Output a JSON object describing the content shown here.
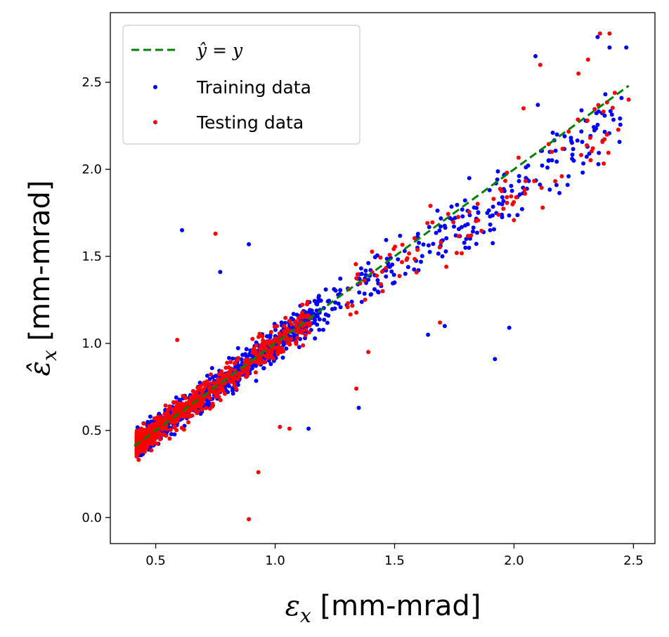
{
  "chart_data": {
    "type": "scatter",
    "title": "",
    "xlabel": "εx [mm-mrad]",
    "ylabel": "ε̂x [mm-mrad]",
    "xlim": [
      0.31,
      2.59
    ],
    "ylim": [
      -0.15,
      2.9
    ],
    "x_ticks": [
      "0.5",
      "1.0",
      "1.5",
      "2.0",
      "2.5"
    ],
    "y_ticks": [
      "0.0",
      "0.5",
      "1.0",
      "1.5",
      "2.0",
      "2.5"
    ],
    "legend_position": "top-left",
    "reference_line": {
      "name": "ŷ = y",
      "style": "dashed",
      "color": "#008000",
      "x": [
        0.41,
        2.48
      ],
      "y": [
        0.41,
        2.48
      ]
    },
    "series": [
      {
        "name": "Training data",
        "color": "#0000ff",
        "points": [
          [
            0.61,
            1.65
          ],
          [
            0.89,
            1.57
          ],
          [
            2.09,
            2.65
          ],
          [
            1.92,
            0.91
          ],
          [
            1.98,
            1.09
          ],
          [
            1.71,
            1.1
          ],
          [
            1.64,
            1.05
          ],
          [
            1.35,
            0.63
          ],
          [
            1.14,
            0.51
          ],
          [
            0.77,
            1.41
          ],
          [
            2.4,
            2.7
          ],
          [
            2.47,
            2.7
          ],
          [
            2.35,
            2.76
          ],
          [
            2.45,
            2.41
          ],
          [
            2.1,
            2.37
          ],
          [
            2.25,
            2.05
          ],
          [
            2.3,
            2.28
          ],
          [
            2.18,
            2.2
          ],
          [
            1.95,
            1.8
          ],
          [
            1.9,
            1.65
          ],
          [
            1.8,
            1.6
          ],
          [
            1.7,
            1.5
          ],
          [
            1.6,
            1.42
          ],
          [
            1.5,
            1.35
          ],
          [
            1.4,
            1.28
          ],
          [
            1.3,
            1.22
          ],
          [
            1.25,
            1.2
          ],
          [
            2.05,
            1.95
          ],
          [
            2.15,
            2.1
          ],
          [
            1.85,
            1.75
          ]
        ]
      },
      {
        "name": "Testing data",
        "color": "#ff0000",
        "points": [
          [
            0.75,
            1.63
          ],
          [
            0.89,
            -0.01
          ],
          [
            0.93,
            0.26
          ],
          [
            2.11,
            2.6
          ],
          [
            2.36,
            2.78
          ],
          [
            2.4,
            2.78
          ],
          [
            2.48,
            2.4
          ],
          [
            1.34,
            0.74
          ],
          [
            1.39,
            0.95
          ],
          [
            1.69,
            1.12
          ],
          [
            1.02,
            0.52
          ],
          [
            1.06,
            0.51
          ],
          [
            0.59,
            1.02
          ],
          [
            1.65,
            1.79
          ],
          [
            2.27,
            2.55
          ],
          [
            2.31,
            2.63
          ],
          [
            2.04,
            2.35
          ],
          [
            1.97,
            1.84
          ],
          [
            1.76,
            1.52
          ],
          [
            1.55,
            1.48
          ],
          [
            2.2,
            1.96
          ],
          [
            2.33,
            2.12
          ],
          [
            1.82,
            1.62
          ],
          [
            2.12,
            1.78
          ],
          [
            1.45,
            1.3
          ]
        ]
      }
    ],
    "cluster_note_low_region": "dense overlapping cloud of both series along y≈x for x in 0.42–1.2"
  }
}
